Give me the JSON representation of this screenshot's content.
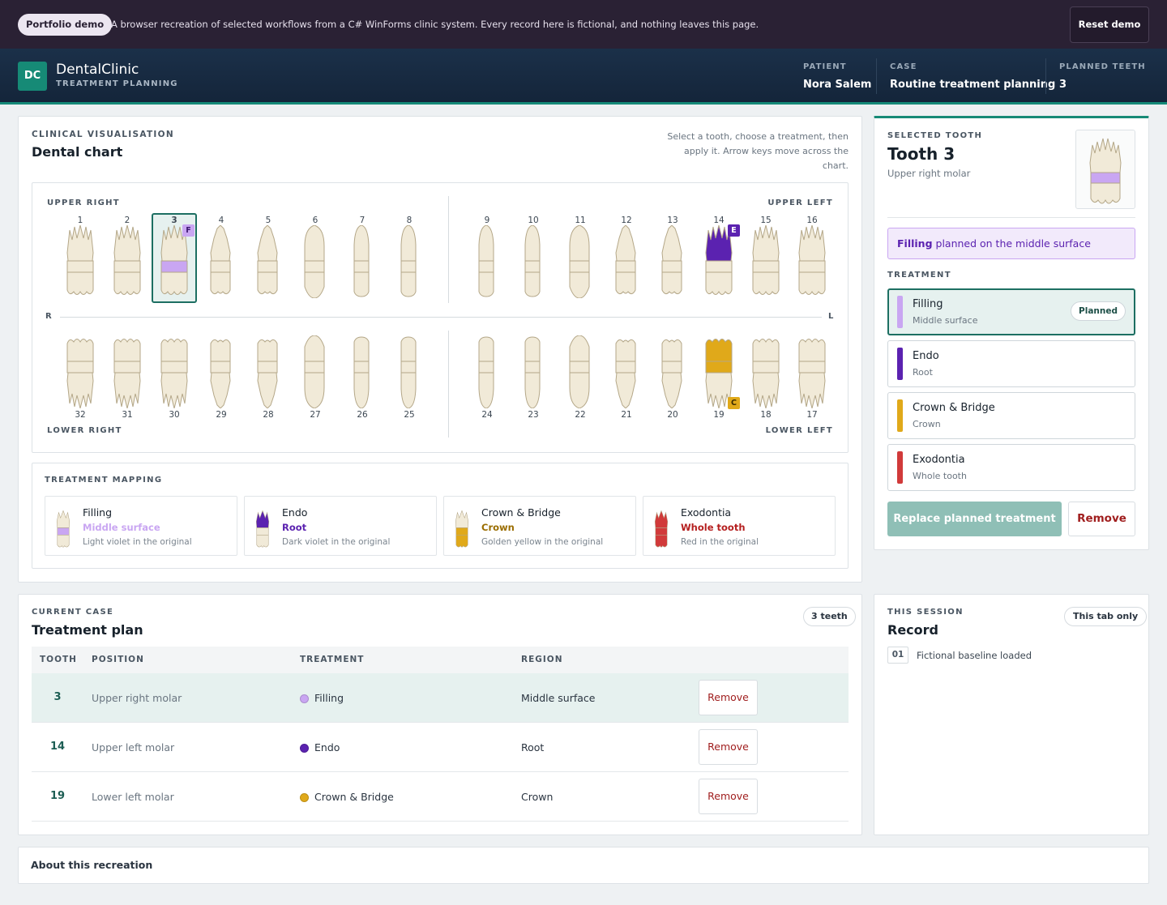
{
  "topbar": {
    "badge": "Portfolio demo",
    "message": "A browser recreation of selected workflows from a C# WinForms clinic system. Every record here is fictional, and nothing leaves this page.",
    "reset_label": "Reset demo"
  },
  "header": {
    "logo": "DC",
    "app_name": "DentalClinic",
    "app_sub": "TREATMENT PLANNING",
    "patient_label": "PATIENT",
    "patient": "Nora Salem",
    "case_label": "CASE",
    "case": "Routine treatment planning",
    "planned_label": "PLANNED TEETH",
    "planned": "3"
  },
  "chart": {
    "eyebrow": "CLINICAL VISUALISATION",
    "title": "Dental chart",
    "hint_line1": "Select a tooth, choose a treatment, then",
    "hint_line2": "apply it. Arrow keys move across the",
    "hint_line3": "chart.",
    "q_upper_right": "UPPER RIGHT",
    "q_upper_left": "UPPER LEFT",
    "q_lower_right": "LOWER RIGHT",
    "q_lower_left": "LOWER LEFT",
    "side_r": "R",
    "side_l": "L",
    "upper_numbers": [
      "1",
      "2",
      "3",
      "4",
      "5",
      "6",
      "7",
      "8",
      "9",
      "10",
      "11",
      "12",
      "13",
      "14",
      "15",
      "16"
    ],
    "lower_numbers": [
      "32",
      "31",
      "30",
      "29",
      "28",
      "27",
      "26",
      "25",
      "24",
      "23",
      "22",
      "21",
      "20",
      "19",
      "18",
      "17"
    ],
    "badges": {
      "t3": "F",
      "t14": "E",
      "t19": "C"
    }
  },
  "mapping": {
    "eyebrow": "TREATMENT MAPPING",
    "items": [
      {
        "name": "Filling",
        "region": "Middle surface",
        "note": "Light violet in the original"
      },
      {
        "name": "Endo",
        "region": "Root",
        "note": "Dark violet in the original"
      },
      {
        "name": "Crown & Bridge",
        "region": "Crown",
        "note": "Golden yellow in the original"
      },
      {
        "name": "Exodontia",
        "region": "Whole tooth",
        "note": "Red in the original"
      }
    ]
  },
  "selected": {
    "eyebrow": "SELECTED TOOTH",
    "title": "Tooth 3",
    "subtitle": "Upper right molar",
    "banner_strong": "Filling",
    "banner_rest": " planned on the middle surface",
    "treatment_label": "TREATMENT",
    "options": [
      {
        "name": "Filling",
        "region": "Middle surface",
        "tag": "Planned"
      },
      {
        "name": "Endo",
        "region": "Root"
      },
      {
        "name": "Crown & Bridge",
        "region": "Crown"
      },
      {
        "name": "Exodontia",
        "region": "Whole tooth"
      }
    ],
    "replace_label": "Replace planned treatment",
    "remove_label": "Remove"
  },
  "plan": {
    "eyebrow": "CURRENT CASE",
    "title": "Treatment plan",
    "count": "3 teeth",
    "columns": [
      "TOOTH",
      "POSITION",
      "TREATMENT",
      "REGION"
    ],
    "rows": [
      {
        "tooth": "3",
        "position": "Upper right molar",
        "treatment": "Filling",
        "region": "Middle surface",
        "action": "Remove"
      },
      {
        "tooth": "14",
        "position": "Upper left molar",
        "treatment": "Endo",
        "region": "Root",
        "action": "Remove"
      },
      {
        "tooth": "19",
        "position": "Lower left molar",
        "treatment": "Crown & Bridge",
        "region": "Crown",
        "action": "Remove"
      }
    ]
  },
  "record": {
    "eyebrow": "THIS SESSION",
    "title": "Record",
    "scope": "This tab only",
    "entries": [
      {
        "n": "01",
        "text": "Fictional baseline loaded"
      }
    ]
  },
  "about": {
    "title": "About this recreation"
  },
  "colors": {
    "filling": "#c9a6f2",
    "endo": "#5b22b0",
    "crown": "#e0a91a",
    "exodontia": "#d13a3a",
    "accent": "#168a76"
  }
}
